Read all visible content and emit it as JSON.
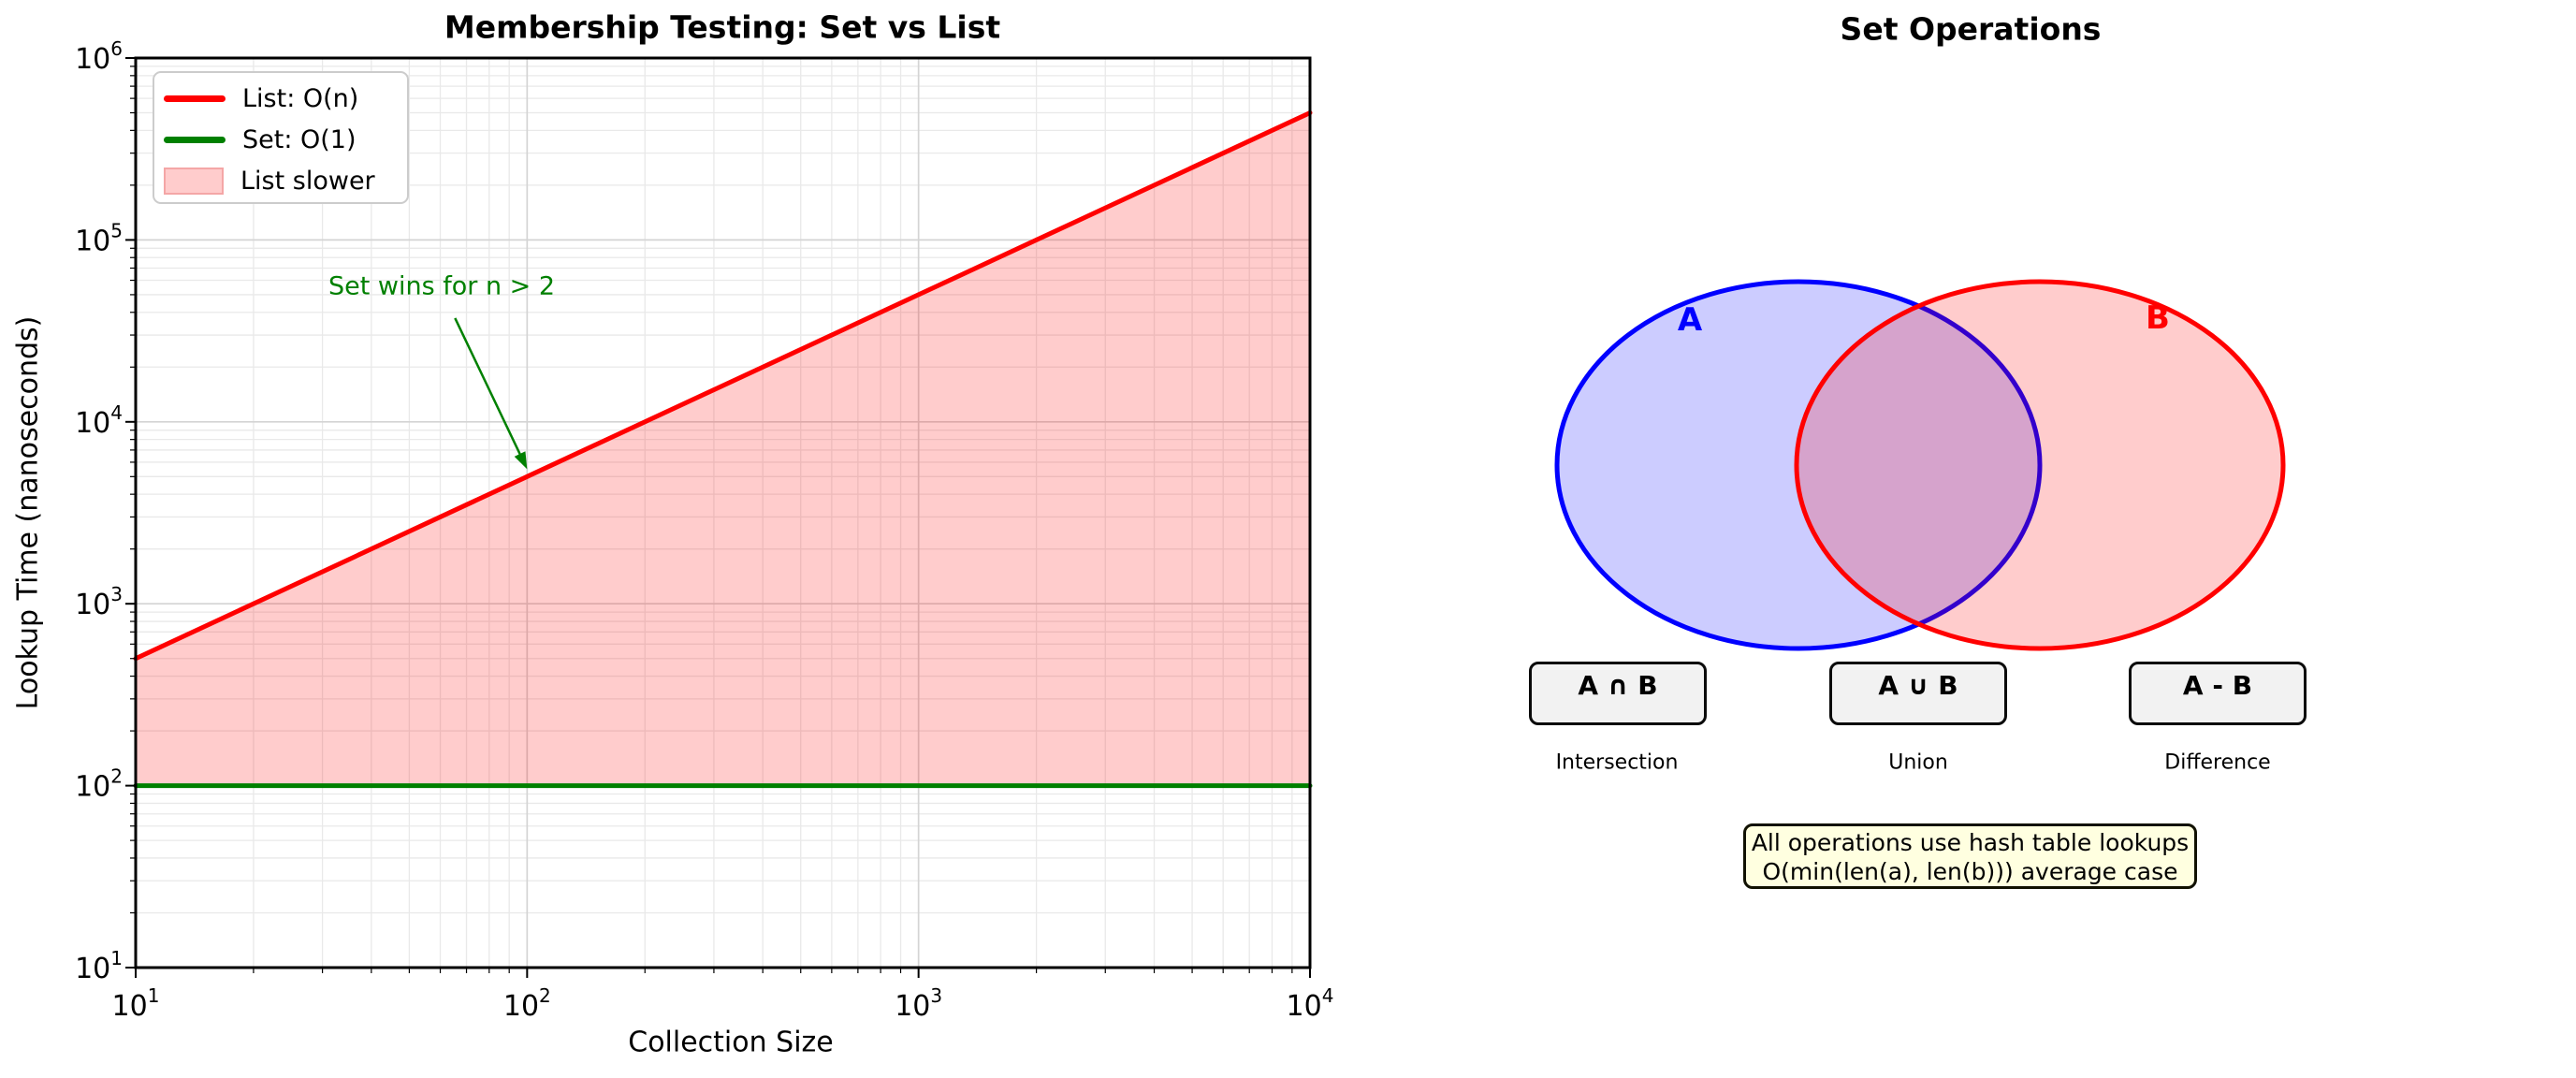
{
  "figure": {
    "background": "#ffffff"
  },
  "left_chart": {
    "title": "Membership Testing: Set vs List",
    "xlabel": "Collection Size",
    "ylabel": "Lookup Time (nanoseconds)"
  },
  "chart_data": {
    "type": "line",
    "title": "Membership Testing: Set vs List",
    "xlabel": "Collection Size",
    "ylabel": "Lookup Time (nanoseconds)",
    "xscale": "log",
    "yscale": "log",
    "xlim": [
      10,
      10000
    ],
    "ylim": [
      10,
      1000000
    ],
    "grid": true,
    "legend_position": "upper left",
    "x": [
      10,
      100,
      1000,
      10000
    ],
    "series": [
      {
        "name": "List: O(n)",
        "color": "#ff0000",
        "values": [
          500,
          5000,
          50000,
          500000
        ]
      },
      {
        "name": "Set: O(1)",
        "color": "#008000",
        "values": [
          100,
          100,
          100,
          100
        ]
      }
    ],
    "fill_between": {
      "label": "List slower",
      "color": "rgba(255,0,0,0.2)",
      "between": [
        "List: O(n)",
        "Set: O(1)"
      ]
    },
    "annotation": {
      "text": "Set wins for n > 2",
      "color": "#008000",
      "xy": [
        100,
        5000
      ],
      "text_pos": [
        60,
        55000
      ]
    }
  },
  "right_panel": {
    "title": "Set Operations",
    "set_a_label": "A",
    "set_b_label": "B",
    "colors": {
      "set_a": "#0000ff",
      "set_b": "#ff0000",
      "fill_opacity": 0.2
    },
    "operations": [
      {
        "formula": "A ∩ B",
        "name": "Intersection"
      },
      {
        "formula": "A ∪ B",
        "name": "Union"
      },
      {
        "formula": "A - B",
        "name": "Difference"
      }
    ],
    "note_lines": [
      "All operations use hash table lookups",
      "O(min(len(a), len(b))) average case"
    ],
    "note_bg": "#ffffe0"
  }
}
